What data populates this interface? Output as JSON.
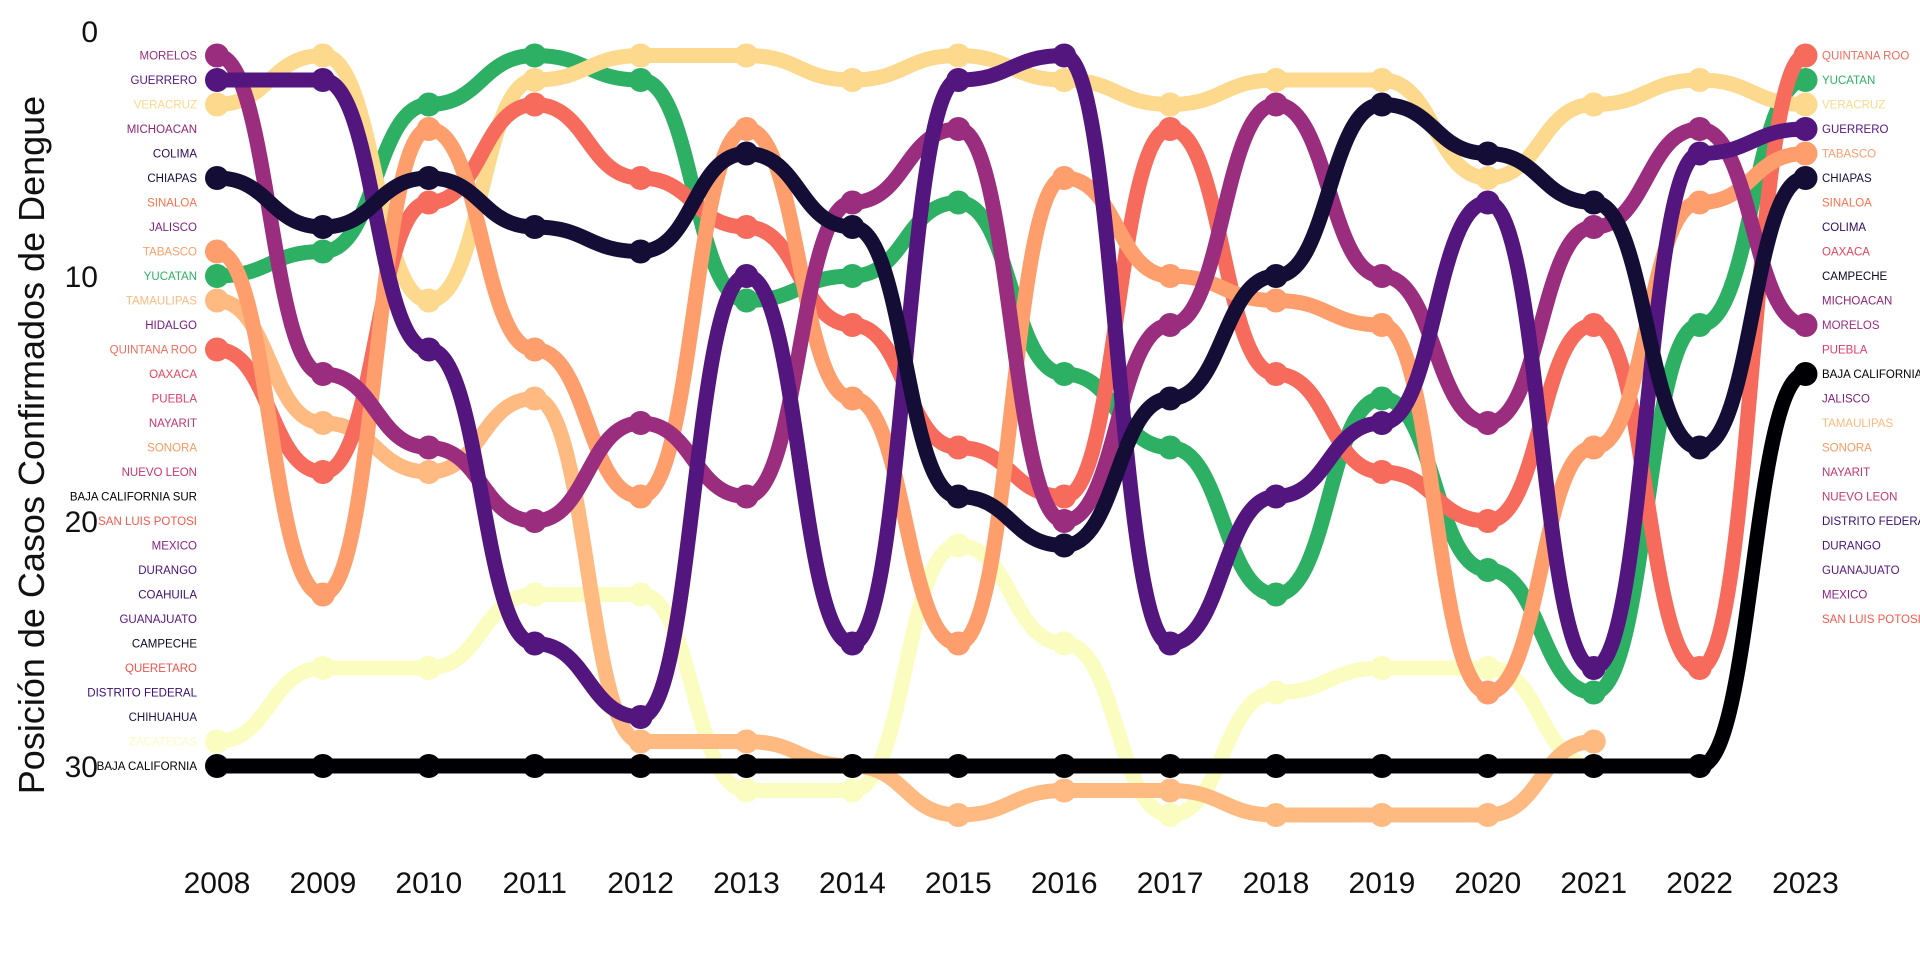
{
  "chart_data": {
    "type": "line",
    "subtype": "bump",
    "title": "",
    "xlabel": "",
    "ylabel": "Posición de Casos Confirmados de Dengue",
    "x": [
      2008,
      2009,
      2010,
      2011,
      2012,
      2013,
      2014,
      2015,
      2016,
      2017,
      2018,
      2019,
      2020,
      2021,
      2022,
      2023
    ],
    "x_ticks": [
      "2008",
      "2009",
      "2010",
      "2011",
      "2012",
      "2013",
      "2014",
      "2015",
      "2016",
      "2017",
      "2018",
      "2019",
      "2020",
      "2021",
      "2022",
      "2023"
    ],
    "y_ticks": [
      "0",
      "10",
      "20",
      "30"
    ],
    "ylim": [
      0,
      33
    ],
    "y_inverted": true,
    "grid": false,
    "legend": "none",
    "left_labels": [
      {
        "rank": 1,
        "text": "MORELOS",
        "color": "#9b2d7f"
      },
      {
        "rank": 2,
        "text": "GUERRERO",
        "color": "#53157e"
      },
      {
        "rank": 3,
        "text": "VERACRUZ",
        "color": "#fcd98c"
      },
      {
        "rank": 4,
        "text": "MICHOACAN",
        "color": "#902479"
      },
      {
        "rank": 5,
        "text": "COLIMA",
        "color": "#2f0a5c"
      },
      {
        "rank": 6,
        "text": "CHIAPAS",
        "color": "#140e36"
      },
      {
        "rank": 7,
        "text": "SINALOA",
        "color": "#f9734d"
      },
      {
        "rank": 8,
        "text": "JALISCO",
        "color": "#7b1f7e"
      },
      {
        "rank": 9,
        "text": "TABASCO",
        "color": "#fe9e6c"
      },
      {
        "rank": 10,
        "text": "YUCATAN",
        "color": "#2db063"
      },
      {
        "rank": 11,
        "text": "TAMAULIPAS",
        "color": "#feba80"
      },
      {
        "rank": 12,
        "text": "HIDALGO",
        "color": "#721a7b"
      },
      {
        "rank": 13,
        "text": "QUINTANA ROO",
        "color": "#f66b5c"
      },
      {
        "rank": 14,
        "text": "OAXACA",
        "color": "#e8435a"
      },
      {
        "rank": 15,
        "text": "PUEBLA",
        "color": "#de3b6b"
      },
      {
        "rank": 16,
        "text": "NAYARIT",
        "color": "#c13472"
      },
      {
        "rank": 17,
        "text": "SONORA",
        "color": "#fd9a63"
      },
      {
        "rank": 18,
        "text": "NUEVO LEON",
        "color": "#c8356a"
      },
      {
        "rank": 19,
        "text": "BAJA CALIFORNIA SUR",
        "color": "#000004"
      },
      {
        "rank": 20,
        "text": "SAN LUIS POTOSI",
        "color": "#f3594c"
      },
      {
        "rank": 21,
        "text": "MEXICO",
        "color": "#8a2285"
      },
      {
        "rank": 22,
        "text": "DURANGO",
        "color": "#4c117a"
      },
      {
        "rank": 23,
        "text": "COAHUILA",
        "color": "#3b0f70"
      },
      {
        "rank": 24,
        "text": "GUANAJUATO",
        "color": "#57157e"
      },
      {
        "rank": 25,
        "text": "CAMPECHE",
        "color": "#0b0924"
      },
      {
        "rank": 26,
        "text": "QUERETARO",
        "color": "#f0524b"
      },
      {
        "rank": 27,
        "text": "DISTRITO FEDERAL",
        "color": "#3c0f71"
      },
      {
        "rank": 28,
        "text": "CHIHUAHUA",
        "color": "#1d1147"
      },
      {
        "rank": 29,
        "text": "ZACATECAS",
        "color": "#fbfcbf"
      },
      {
        "rank": 30,
        "text": "BAJA CALIFORNIA",
        "color": "#000004"
      }
    ],
    "right_labels": [
      {
        "rank": 1,
        "text": "QUINTANA ROO",
        "color": "#f66b5c"
      },
      {
        "rank": 2,
        "text": "YUCATAN",
        "color": "#2db063"
      },
      {
        "rank": 3,
        "text": "VERACRUZ",
        "color": "#fcd98c"
      },
      {
        "rank": 4,
        "text": "GUERRERO",
        "color": "#53157e"
      },
      {
        "rank": 5,
        "text": "TABASCO",
        "color": "#fe9e6c"
      },
      {
        "rank": 6,
        "text": "CHIAPAS",
        "color": "#140e36"
      },
      {
        "rank": 7,
        "text": "SINALOA",
        "color": "#f9734d"
      },
      {
        "rank": 8,
        "text": "COLIMA",
        "color": "#2f0a5c"
      },
      {
        "rank": 9,
        "text": "OAXACA",
        "color": "#e8435a"
      },
      {
        "rank": 10,
        "text": "CAMPECHE",
        "color": "#0b0924"
      },
      {
        "rank": 11,
        "text": "MICHOACAN",
        "color": "#902479"
      },
      {
        "rank": 12,
        "text": "MORELOS",
        "color": "#9b2d7f"
      },
      {
        "rank": 13,
        "text": "PUEBLA",
        "color": "#de3b6b"
      },
      {
        "rank": 14,
        "text": "BAJA CALIFORNIA",
        "color": "#000004"
      },
      {
        "rank": 15,
        "text": "JALISCO",
        "color": "#7b1f7e"
      },
      {
        "rank": 16,
        "text": "TAMAULIPAS",
        "color": "#feba80"
      },
      {
        "rank": 17,
        "text": "SONORA",
        "color": "#fd9a63"
      },
      {
        "rank": 18,
        "text": "NAYARIT",
        "color": "#c13472"
      },
      {
        "rank": 19,
        "text": "NUEVO LEON",
        "color": "#c8356a"
      },
      {
        "rank": 20,
        "text": "DISTRITO FEDERAL",
        "color": "#3c0f71"
      },
      {
        "rank": 21,
        "text": "DURANGO",
        "color": "#4c117a"
      },
      {
        "rank": 22,
        "text": "GUANAJUATO",
        "color": "#57157e"
      },
      {
        "rank": 23,
        "text": "MEXICO",
        "color": "#8a2285"
      },
      {
        "rank": 24,
        "text": "SAN LUIS POTOSI",
        "color": "#f3594c"
      }
    ],
    "series": [
      {
        "color": "#2db063",
        "values": [
          10,
          9,
          3,
          1,
          2,
          11,
          10,
          7,
          14,
          17,
          23,
          15,
          22,
          27,
          12,
          2
        ]
      },
      {
        "color": "#fbfcbf",
        "values": [
          29,
          26,
          26,
          23,
          23,
          31,
          31,
          21,
          25,
          32,
          27,
          26,
          26,
          30,
          null,
          null
        ]
      },
      {
        "color": "#fcd98c",
        "values": [
          3,
          1,
          11,
          2,
          1,
          1,
          2,
          1,
          2,
          3,
          2,
          2,
          6,
          3,
          2,
          3
        ]
      },
      {
        "color": "#feba80",
        "values": [
          11,
          16,
          18,
          15,
          29,
          29,
          30,
          32,
          31,
          31,
          32,
          32,
          32,
          29,
          null,
          null
        ]
      },
      {
        "color": "#f66b5c",
        "values": [
          13,
          18,
          7,
          3,
          6,
          8,
          12,
          17,
          19,
          4,
          14,
          18,
          20,
          12,
          26,
          1
        ]
      },
      {
        "color": "#fe9e6c",
        "values": [
          9,
          23,
          4,
          13,
          19,
          4,
          15,
          25,
          6,
          10,
          11,
          12,
          27,
          17,
          7,
          5
        ]
      },
      {
        "color": "#9b2d7f",
        "values": [
          1,
          14,
          17,
          20,
          16,
          19,
          7,
          4,
          20,
          12,
          3,
          10,
          16,
          8,
          4,
          12
        ]
      },
      {
        "color": "#53157e",
        "values": [
          2,
          2,
          13,
          25,
          28,
          10,
          25,
          2,
          1,
          25,
          19,
          16,
          7,
          26,
          5,
          4
        ]
      },
      {
        "color": "#000004",
        "values": [
          30,
          30,
          30,
          30,
          30,
          30,
          30,
          30,
          30,
          30,
          30,
          30,
          30,
          30,
          30,
          14
        ]
      },
      {
        "color": "#140e36",
        "values": [
          6,
          8,
          6,
          8,
          9,
          5,
          8,
          19,
          21,
          15,
          10,
          3,
          5,
          7,
          17,
          6
        ]
      }
    ]
  }
}
